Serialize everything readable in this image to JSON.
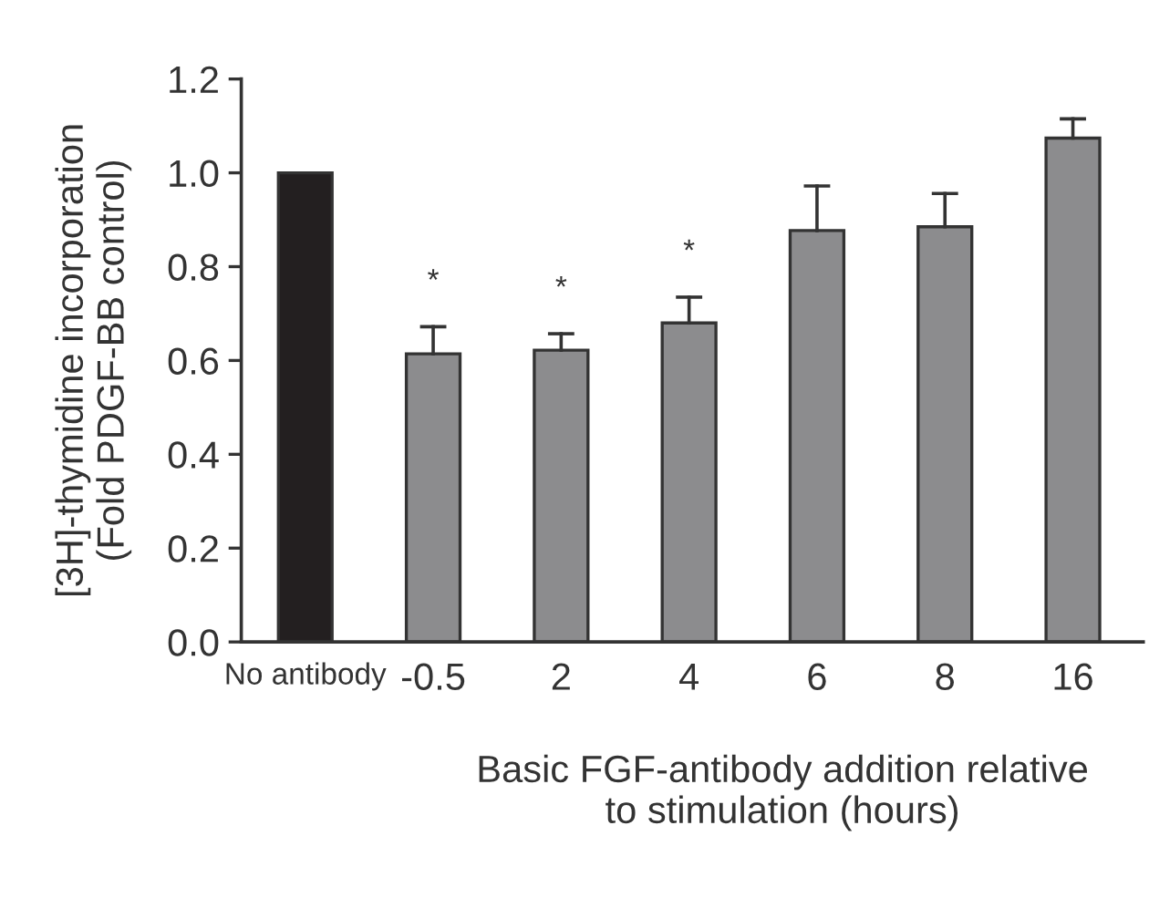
{
  "chart_data": {
    "type": "bar",
    "ylabel": "[3H]-thymidine incorporation\n(Fold PDGF-BB control)",
    "xlabel": "Basic FGF-antibody addition relative\nto stimulation (hours)",
    "categories": [
      "No antibody",
      "-0.5",
      "2",
      "4",
      "6",
      "8",
      "16"
    ],
    "values": [
      1.0,
      0.614,
      0.622,
      0.68,
      0.877,
      0.885,
      1.074
    ],
    "colors": [
      "#231f20",
      "#8c8c8e",
      "#8c8c8e",
      "#8c8c8e",
      "#8c8c8e",
      "#8c8c8e",
      "#8c8c8e"
    ],
    "errors": [
      null,
      [
        0.614,
        0.672
      ],
      [
        0.622,
        0.657
      ],
      [
        0.68,
        0.735
      ],
      [
        0.877,
        0.972
      ],
      [
        0.885,
        0.956
      ],
      [
        1.074,
        1.115
      ]
    ],
    "value_labels": [
      null,
      "*",
      "*",
      "*",
      null,
      null,
      null
    ],
    "ylim": [
      0,
      1.2
    ],
    "yticks": [
      {
        "value": 0,
        "label": "0.0"
      },
      {
        "value": 0.2,
        "label": "0.2"
      },
      {
        "value": 0.4,
        "label": "0.4"
      },
      {
        "value": 0.6,
        "label": "0.6"
      },
      {
        "value": 0.8,
        "label": "0.8"
      },
      {
        "value": 1.0,
        "label": "1.0"
      },
      {
        "value": 1.2,
        "label": "1.2"
      }
    ],
    "grid": false,
    "legend": false
  }
}
